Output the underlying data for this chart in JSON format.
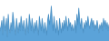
{
  "values": [
    55,
    65,
    80,
    45,
    90,
    70,
    55,
    85,
    40,
    95,
    60,
    50,
    75,
    55,
    100,
    80,
    60,
    45,
    85,
    65,
    50,
    75,
    55,
    90,
    70,
    55,
    80,
    60,
    45,
    85,
    65,
    50,
    95,
    75,
    55,
    85,
    65,
    50,
    75,
    55,
    80,
    60,
    45,
    90,
    70,
    55,
    85,
    65,
    50,
    75,
    60,
    45,
    80,
    95,
    70,
    85,
    115,
    80,
    55,
    90,
    65,
    50,
    80,
    60,
    45,
    85,
    65,
    50,
    75,
    55,
    80,
    60,
    90,
    70,
    55,
    85,
    65,
    75,
    55,
    70,
    55,
    60,
    80,
    50,
    95,
    70,
    110,
    80,
    60,
    85,
    65,
    50,
    75,
    60,
    80,
    65,
    90,
    70,
    60,
    75,
    85,
    65,
    80,
    55,
    70,
    60,
    80,
    65,
    50,
    70,
    60,
    75,
    55,
    85,
    65,
    80,
    60,
    75,
    55,
    70
  ],
  "line_color": "#4a90c4",
  "fill_color": "#5ba3d9",
  "background_color": "#ffffff",
  "ylim_min": 30,
  "ylim_max": 130
}
